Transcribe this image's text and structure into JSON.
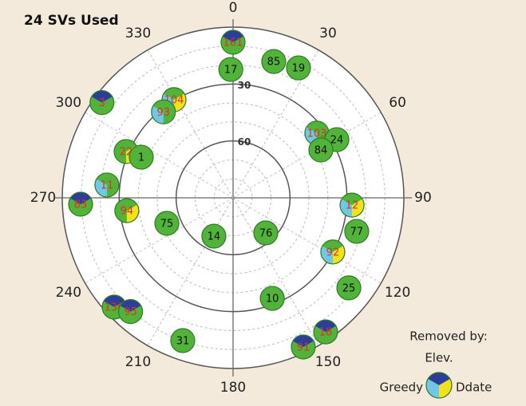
{
  "chart_data": {
    "type": "skyplot",
    "title": "24 SVs Used",
    "azimuth_ticks": [
      0,
      30,
      60,
      90,
      120,
      150,
      180,
      210,
      240,
      270,
      300,
      330
    ],
    "ylim": [
      0,
      90
    ],
    "elevation_ticks": [
      30,
      60
    ],
    "normal_color": "#52b33a",
    "legend": {
      "title": "Removed by:",
      "items": [
        {
          "name": "Elev.",
          "color": "#2c3e9c"
        },
        {
          "name": "Greedy",
          "color": "#6fc9e6"
        },
        {
          "name": "Ddate",
          "color": "#f2e21e"
        }
      ]
    },
    "satellites": [
      {
        "label": "161",
        "azimuth": 0,
        "elevation": 8,
        "removed_by": [
          "Elev."
        ]
      },
      {
        "label": "17",
        "azimuth": 359,
        "elevation": 22.3,
        "removed_by": []
      },
      {
        "label": "85",
        "azimuth": 16.6,
        "elevation": 15,
        "removed_by": []
      },
      {
        "label": "19",
        "azimuth": 26.7,
        "elevation": 13.3,
        "removed_by": []
      },
      {
        "label": "3",
        "azimuth": 306,
        "elevation": 4.6,
        "removed_by": [
          "Elev."
        ]
      },
      {
        "label": "104",
        "azimuth": 329,
        "elevation": 29.6,
        "removed_by": [
          "Greedy",
          "Ddate"
        ]
      },
      {
        "label": "93",
        "azimuth": 321,
        "elevation": 31.7,
        "removed_by": [
          "Greedy"
        ]
      },
      {
        "label": "103",
        "azimuth": 52.3,
        "elevation": 34.2,
        "removed_by": [
          "Greedy"
        ]
      },
      {
        "label": "24",
        "azimuth": 60.7,
        "elevation": 27.3,
        "removed_by": []
      },
      {
        "label": "84",
        "azimuth": 61.4,
        "elevation": 37.3,
        "removed_by": []
      },
      {
        "label": "22",
        "azimuth": 293.4,
        "elevation": 28.6,
        "removed_by": [
          "Ddate"
        ]
      },
      {
        "label": "1",
        "azimuth": 293.9,
        "elevation": 37.1,
        "removed_by": []
      },
      {
        "label": "11",
        "azimuth": 275.8,
        "elevation": 23.2,
        "removed_by": [
          "Greedy"
        ]
      },
      {
        "label": "83",
        "azimuth": 267.6,
        "elevation": 9.6,
        "removed_by": [
          "Elev."
        ]
      },
      {
        "label": "94",
        "azimuth": 263.1,
        "elevation": 33.6,
        "removed_by": [
          "Ddate"
        ]
      },
      {
        "label": "12",
        "azimuth": 93.5,
        "elevation": 27.2,
        "removed_by": [
          "Greedy",
          "Ddate"
        ]
      },
      {
        "label": "75",
        "azimuth": 248.9,
        "elevation": 52.6,
        "removed_by": []
      },
      {
        "label": "14",
        "azimuth": 206.6,
        "elevation": 67.4,
        "removed_by": []
      },
      {
        "label": "76",
        "azimuth": 137,
        "elevation": 64.7,
        "removed_by": []
      },
      {
        "label": "77",
        "azimuth": 105.2,
        "elevation": 22.5,
        "removed_by": []
      },
      {
        "label": "92",
        "azimuth": 118.5,
        "elevation": 30.2,
        "removed_by": [
          "Greedy",
          "Ddate"
        ]
      },
      {
        "label": "25",
        "azimuth": 127.9,
        "elevation": 12.7,
        "removed_by": []
      },
      {
        "label": "10",
        "azimuth": 158.7,
        "elevation": 33.1,
        "removed_by": []
      },
      {
        "label": "136",
        "azimuth": 227.4,
        "elevation": 4.9,
        "removed_by": [
          "Elev."
        ]
      },
      {
        "label": "95",
        "azimuth": 222,
        "elevation": 9.3,
        "removed_by": [
          "Elev."
        ]
      },
      {
        "label": "31",
        "azimuth": 199.4,
        "elevation": 10.2,
        "removed_by": []
      },
      {
        "label": "18",
        "azimuth": 145.4,
        "elevation": 4.1,
        "removed_by": [
          "Elev."
        ]
      },
      {
        "label": "91",
        "azimuth": 154.8,
        "elevation": 3.1,
        "removed_by": [
          "Elev."
        ]
      }
    ]
  }
}
